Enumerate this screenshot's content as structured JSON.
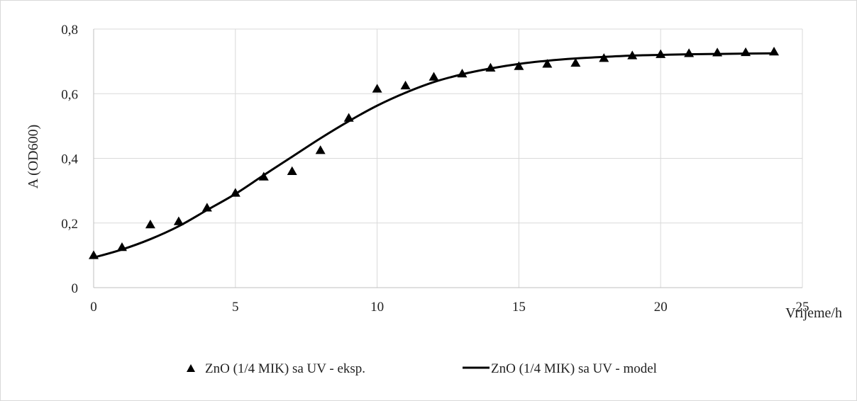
{
  "chart_data": {
    "type": "scatter",
    "xlabel": "Vrijeme/h",
    "ylabel": "A (OD600)",
    "xlim": [
      0,
      25
    ],
    "ylim": [
      0,
      0.8
    ],
    "xticks": [
      0,
      5,
      10,
      15,
      20,
      25
    ],
    "yticks": [
      0,
      0.2,
      0.4,
      0.6,
      0.8
    ],
    "xtick_labels": [
      "0",
      "5",
      "10",
      "15",
      "20",
      "25"
    ],
    "ytick_labels": [
      "0",
      "0,2",
      "0,4",
      "0,6",
      "0,8"
    ],
    "grid": true,
    "legend_position": "bottom",
    "series": [
      {
        "name": "ZnO (1/4 MIK) sa UV - eksp.",
        "kind": "markers",
        "marker": "triangle",
        "color": "#000000",
        "x": [
          0,
          1,
          2,
          3,
          4,
          5,
          6,
          7,
          8,
          9,
          10,
          11,
          12,
          13,
          14,
          15,
          16,
          17,
          18,
          19,
          20,
          21,
          22,
          23,
          24
        ],
        "y": [
          0.1,
          0.125,
          0.195,
          0.205,
          0.247,
          0.293,
          0.343,
          0.36,
          0.425,
          0.525,
          0.615,
          0.625,
          0.652,
          0.662,
          0.68,
          0.685,
          0.692,
          0.695,
          0.71,
          0.718,
          0.722,
          0.725,
          0.727,
          0.728,
          0.73
        ]
      },
      {
        "name": "ZnO (1/4 MIK) sa UV - model",
        "kind": "line",
        "color": "#000000",
        "x": [
          0,
          1,
          2,
          3,
          4,
          5,
          6,
          7,
          8,
          9,
          10,
          11,
          12,
          13,
          14,
          15,
          16,
          17,
          18,
          19,
          20,
          21,
          22,
          23,
          24
        ],
        "y": [
          0.093,
          0.118,
          0.15,
          0.19,
          0.24,
          0.29,
          0.348,
          0.405,
          0.462,
          0.515,
          0.563,
          0.603,
          0.636,
          0.66,
          0.678,
          0.692,
          0.702,
          0.709,
          0.714,
          0.718,
          0.72,
          0.722,
          0.723,
          0.724,
          0.725
        ]
      }
    ]
  }
}
